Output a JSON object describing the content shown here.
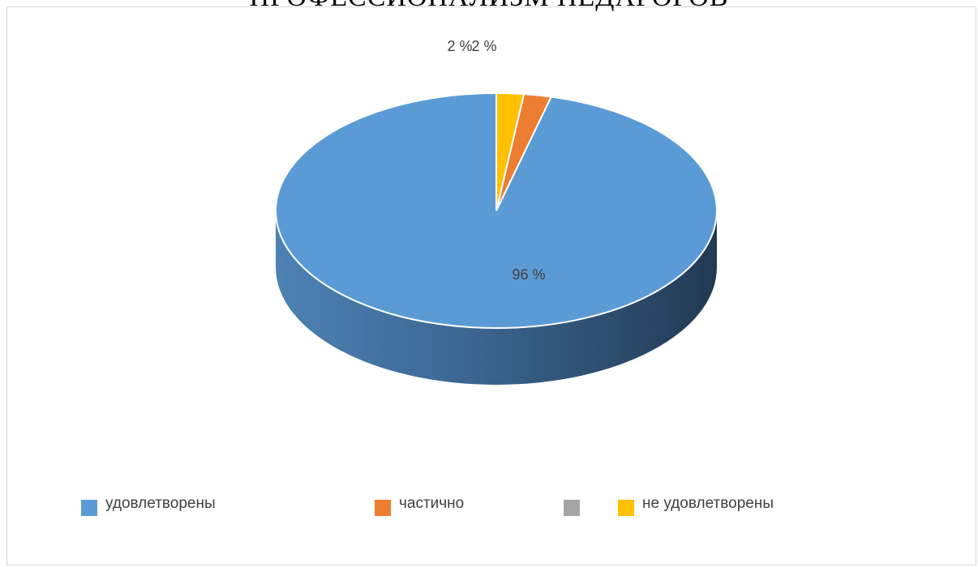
{
  "chart_data": {
    "type": "pie",
    "title": "ПРОФЕССИОНАЛИЗМ ПЕДАГОГОВ",
    "categories": [
      "удовлетворены",
      "частично",
      "",
      "не удовлетворены"
    ],
    "values": [
      96,
      2,
      0,
      2
    ],
    "data_labels": [
      "96 %",
      "2 %",
      "",
      "2 %"
    ],
    "colors": [
      "#5b9bd5",
      "#ed7d31",
      "#a5a5a5",
      "#ffc000"
    ],
    "style": "3d",
    "legend_position": "bottom"
  }
}
